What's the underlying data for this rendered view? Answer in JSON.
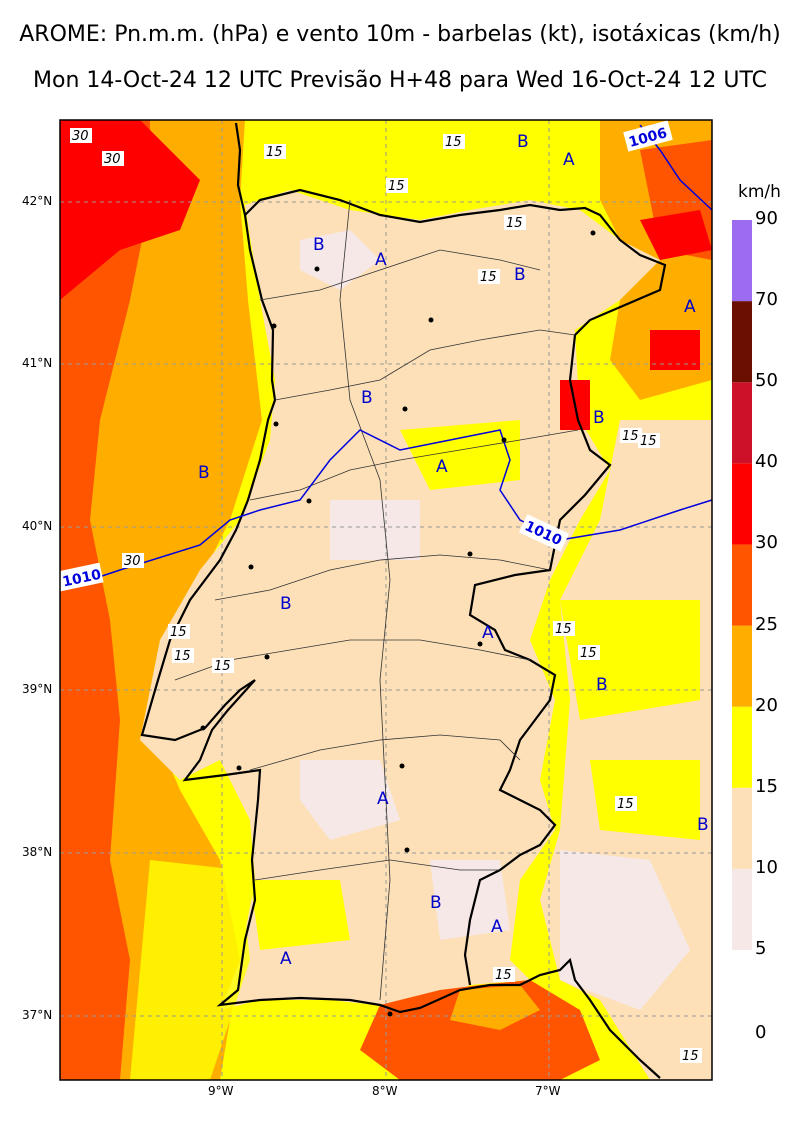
{
  "title": {
    "line1": "AROME: Pn.m.m. (hPa) e vento 10m - barbelas (kt), isotáxicas (km/h)",
    "line2": "Mon 14-Oct-24 12 UTC Previsão H+48 para Wed 16-Oct-24 12 UTC"
  },
  "axes": {
    "lat_labels": [
      "42°N",
      "41°N",
      "40°N",
      "39°N",
      "38°N",
      "37°N"
    ],
    "lon_labels": [
      "9°W",
      "8°W",
      "7°W"
    ]
  },
  "colorbar": {
    "unit": "km/h",
    "levels": [
      "0",
      "5",
      "10",
      "15",
      "20",
      "25",
      "30",
      "40",
      "50",
      "70",
      "90"
    ],
    "colors": [
      "#f5e8e6",
      "#fde0b8",
      "#ffff00",
      "#ffae00",
      "#ff5500",
      "#ff0000",
      "#cc1128",
      "#6b0f00",
      "#9c6cf0"
    ]
  },
  "pressure_centers": {
    "high_letter": "A",
    "low_letter": "B"
  },
  "isobar_labels": [
    "1006",
    "1010",
    "1010"
  ],
  "isotach_labels": [
    "30",
    "30",
    "15",
    "15",
    "15",
    "15",
    "15",
    "15",
    "15",
    "15",
    "15",
    "15",
    "15",
    "15",
    "15",
    "15",
    "15",
    "30"
  ],
  "colors": {
    "isobar": "#0000dd",
    "letters": "#0000cc",
    "coast": "#000000"
  }
}
